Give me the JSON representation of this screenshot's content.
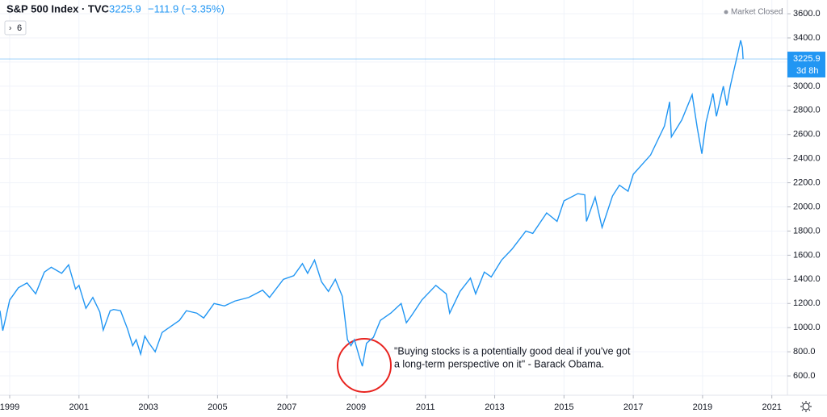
{
  "chart_data": {
    "type": "line",
    "title": "S&P 500 Index · TVC",
    "header_price": "3225.9",
    "header_change": "−111.9 (−3.35%)",
    "status": "Market Closed",
    "collapse_count": "6",
    "countdown": "3d 8h",
    "last_value": 3225.9,
    "color": "#2196f3",
    "annotation": [
      "\"Buying stocks is a potentially good deal if you've got",
      "a long-term perspective on it\" - Barack Obama."
    ],
    "xlim": [
      1998.72,
      2021.45
    ],
    "xticks": [
      1999,
      2001,
      2003,
      2005,
      2007,
      2009,
      2011,
      2013,
      2015,
      2017,
      2019,
      2021
    ],
    "ylim": [
      440,
      3714
    ],
    "yticks": [
      {
        "value": 600,
        "label": "600.0"
      },
      {
        "value": 800,
        "label": "800.0"
      },
      {
        "value": 1000,
        "label": "1000.0"
      },
      {
        "value": 1200,
        "label": "1200.0"
      },
      {
        "value": 1400,
        "label": "1400.0"
      },
      {
        "value": 1600,
        "label": "1600.0"
      },
      {
        "value": 1800,
        "label": "1800.0"
      },
      {
        "value": 2000,
        "label": "2000.0"
      },
      {
        "value": 2200,
        "label": "2200.0"
      },
      {
        "value": 2400,
        "label": "2400.0"
      },
      {
        "value": 2600,
        "label": "2600.0"
      },
      {
        "value": 2800,
        "label": "2800.0"
      },
      {
        "value": 3000,
        "label": "3000.0"
      },
      {
        "value": 3200,
        "label": "3200.0"
      },
      {
        "value": 3400,
        "label": "3400.0"
      },
      {
        "value": 3600,
        "label": "3600.0"
      }
    ],
    "x": [
      1998.72,
      1998.8,
      1998.9,
      1999.0,
      1999.25,
      1999.5,
      1999.75,
      2000.0,
      2000.2,
      2000.5,
      2000.7,
      2000.9,
      2001.0,
      2001.2,
      2001.4,
      2001.6,
      2001.7,
      2001.9,
      2002.0,
      2002.2,
      2002.4,
      2002.55,
      2002.65,
      2002.78,
      2002.9,
      2003.0,
      2003.2,
      2003.4,
      2003.6,
      2003.9,
      2004.1,
      2004.4,
      2004.6,
      2004.9,
      2005.2,
      2005.5,
      2005.9,
      2006.3,
      2006.5,
      2006.9,
      2007.2,
      2007.45,
      2007.6,
      2007.8,
      2008.0,
      2008.2,
      2008.4,
      2008.6,
      2008.75,
      2008.85,
      2008.95,
      2009.1,
      2009.18,
      2009.3,
      2009.5,
      2009.7,
      2010.0,
      2010.3,
      2010.45,
      2010.6,
      2010.9,
      2011.3,
      2011.6,
      2011.7,
      2012.0,
      2012.3,
      2012.45,
      2012.7,
      2012.9,
      2013.2,
      2013.5,
      2013.9,
      2014.1,
      2014.5,
      2014.8,
      2015.0,
      2015.4,
      2015.6,
      2015.65,
      2015.9,
      2016.1,
      2016.4,
      2016.6,
      2016.85,
      2017.0,
      2017.5,
      2017.9,
      2018.05,
      2018.1,
      2018.4,
      2018.7,
      2018.85,
      2018.98,
      2019.1,
      2019.3,
      2019.4,
      2019.6,
      2019.7,
      2019.8,
      2020.0,
      2020.1,
      2020.15,
      2020.17
    ],
    "values": [
      1140,
      975,
      1100,
      1229,
      1330,
      1370,
      1280,
      1460,
      1500,
      1450,
      1520,
      1320,
      1350,
      1160,
      1250,
      1130,
      980,
      1140,
      1150,
      1140,
      990,
      850,
      900,
      780,
      930,
      880,
      800,
      960,
      1000,
      1060,
      1140,
      1120,
      1080,
      1200,
      1180,
      1220,
      1250,
      1310,
      1250,
      1400,
      1430,
      1530,
      1450,
      1560,
      1380,
      1300,
      1400,
      1260,
      900,
      850,
      900,
      750,
      680,
      870,
      920,
      1060,
      1120,
      1200,
      1040,
      1100,
      1230,
      1350,
      1280,
      1120,
      1300,
      1410,
      1280,
      1460,
      1420,
      1560,
      1650,
      1800,
      1780,
      1950,
      1880,
      2050,
      2110,
      2100,
      1880,
      2080,
      1830,
      2090,
      2180,
      2130,
      2270,
      2430,
      2670,
      2870,
      2580,
      2720,
      2930,
      2650,
      2440,
      2700,
      2940,
      2750,
      3000,
      2840,
      3000,
      3250,
      3380,
      3320,
      3225.9
    ]
  }
}
